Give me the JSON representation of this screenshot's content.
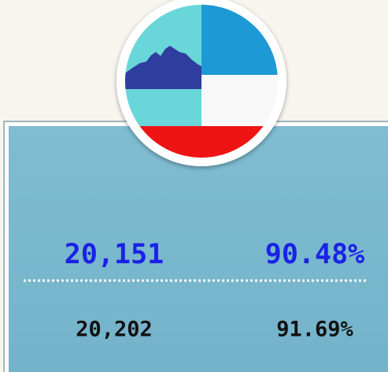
{
  "stats": {
    "primary": {
      "count": "20,151",
      "percent": "90.48%"
    },
    "secondary": {
      "count": "20,202",
      "percent": "91.69%"
    }
  }
}
